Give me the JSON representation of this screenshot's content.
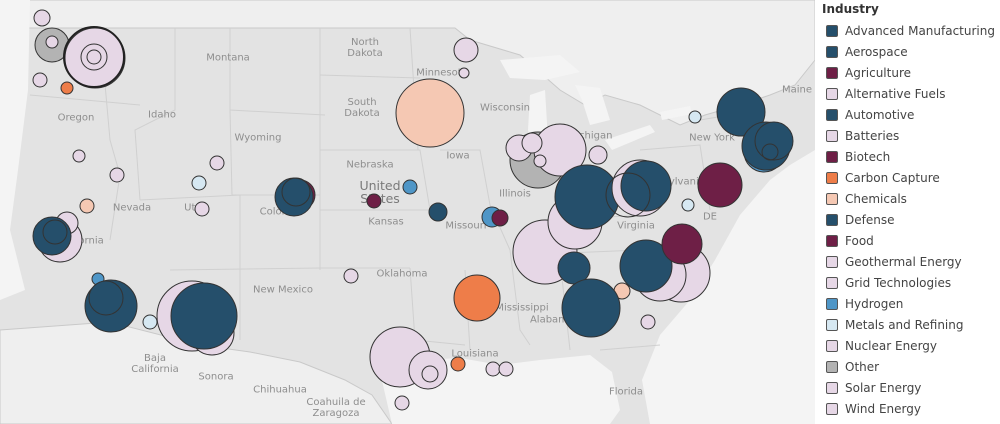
{
  "legend": {
    "title": "Industry",
    "items": [
      {
        "label": "Advanced Manufacturing",
        "color": "#254f6b"
      },
      {
        "label": "Aerospace",
        "color": "#254f6b"
      },
      {
        "label": "Agriculture",
        "color": "#6e1f46"
      },
      {
        "label": "Alternative Fuels",
        "color": "#e6d7e6"
      },
      {
        "label": "Automotive",
        "color": "#254f6b"
      },
      {
        "label": "Batteries",
        "color": "#e6d7e6"
      },
      {
        "label": "Biotech",
        "color": "#6e1f46"
      },
      {
        "label": "Carbon Capture",
        "color": "#ee7d49"
      },
      {
        "label": "Chemicals",
        "color": "#f5c8b3"
      },
      {
        "label": "Defense",
        "color": "#254f6b"
      },
      {
        "label": "Food",
        "color": "#6e1f46"
      },
      {
        "label": "Geothermal Energy",
        "color": "#e6d7e6"
      },
      {
        "label": "Grid Technologies",
        "color": "#e6d7e6"
      },
      {
        "label": "Hydrogen",
        "color": "#4f96c7"
      },
      {
        "label": "Metals and Refining",
        "color": "#d6e8f2"
      },
      {
        "label": "Nuclear Energy",
        "color": "#e6d7e6"
      },
      {
        "label": "Other",
        "color": "#b3b3b3"
      },
      {
        "label": "Solar Energy",
        "color": "#e6d7e6"
      },
      {
        "label": "Wind Energy",
        "color": "#e6d7e6"
      }
    ]
  },
  "map_labels": {
    "north_dakota": "North\nDakota",
    "montana": "Montana",
    "south_dakota": "South\nDakota",
    "minnesota": "Minnesota",
    "wisconsin": "Wisconsin",
    "oregon": "Oregon",
    "idaho": "Idaho",
    "wyoming": "Wyoming",
    "nebraska": "Nebraska",
    "united_states": "United\nStates",
    "iowa": "Iowa",
    "illinois": "Illinois",
    "nevada": "Nevada",
    "kansas": "Kansas",
    "missouri": "Missouri",
    "california": "California",
    "oklahoma": "Oklahoma",
    "new_mexico": "New Mexico",
    "mississippi": "Mississippi",
    "alabama": "Alabama",
    "louisiana": "Louisiana",
    "baja_california": "Baja\nCalifornia",
    "sonora": "Sonora",
    "chihuahua": "Chihuahua",
    "coahuila": "Coahuila de\nZaragoza",
    "florida": "Florida",
    "virginia": "Virginia",
    "new_york": "New York",
    "maine": "Maine",
    "michigan": "Michigan",
    "pennsylvania": "Pennsylvania",
    "de": "DE",
    "colorado": "Colorado",
    "utah": "Utah"
  }
}
